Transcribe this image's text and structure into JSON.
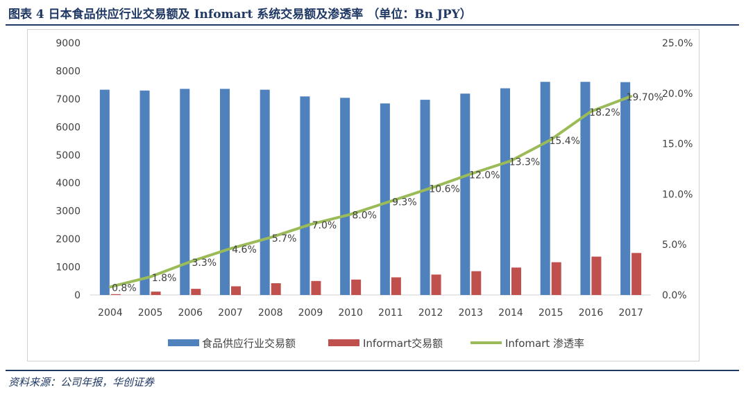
{
  "page": {
    "title": "图表 4 日本食品供应行业交易额及 Infomart 系统交易额及渗透率 （单位：Bn JPY）",
    "source": "资料来源：公司年报，华创证券"
  },
  "chart_data": {
    "type": "bar",
    "categories": [
      "2004",
      "2005",
      "2006",
      "2007",
      "2008",
      "2009",
      "2010",
      "2011",
      "2012",
      "2013",
      "2014",
      "2015",
      "2016",
      "2017"
    ],
    "series": [
      {
        "name": "食品供应行业交易额",
        "type": "bar",
        "axis": "left",
        "color": "#4f81bd",
        "values": [
          7330,
          7300,
          7360,
          7360,
          7330,
          7090,
          7040,
          6840,
          6970,
          7190,
          7380,
          7610,
          7610,
          7600
        ]
      },
      {
        "name": "Informart交易额",
        "type": "bar",
        "axis": "left",
        "color": "#c0504d",
        "values": [
          30,
          120,
          220,
          310,
          420,
          500,
          550,
          630,
          730,
          850,
          980,
          1170,
          1370,
          1500
        ]
      },
      {
        "name": "Infomart 渗透率",
        "type": "line",
        "axis": "right",
        "color": "#9bbb59",
        "values": [
          0.8,
          1.8,
          3.3,
          4.6,
          5.7,
          7.0,
          8.0,
          9.3,
          10.6,
          12.0,
          13.3,
          15.4,
          18.2,
          19.7
        ],
        "labels": [
          "0.8%",
          "1.8%",
          "3.3%",
          "4.6%",
          "5.7%",
          "7.0%",
          "8.0%",
          "9.3%",
          "10.6%",
          "12.0%",
          "13.3%",
          "15.4%",
          "18.2%",
          "19.70%"
        ]
      }
    ],
    "ylim_left": [
      0,
      9000
    ],
    "yticks_left": [
      "0",
      "1000",
      "2000",
      "3000",
      "4000",
      "5000",
      "6000",
      "7000",
      "8000",
      "9000"
    ],
    "ylim_right": [
      0,
      25
    ],
    "yticks_right": [
      "0.0%",
      "5.0%",
      "10.0%",
      "15.0%",
      "20.0%",
      "25.0%"
    ],
    "legend_position": "bottom",
    "grid": false
  }
}
